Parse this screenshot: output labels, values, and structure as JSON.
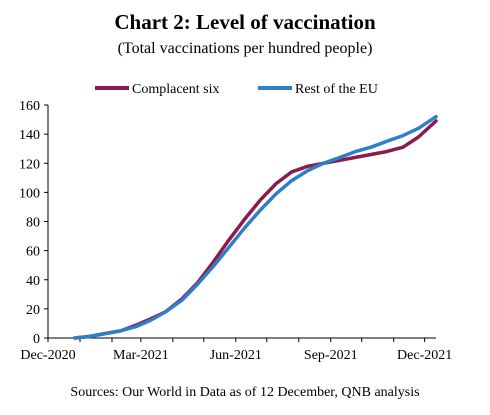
{
  "chart_data": {
    "type": "line",
    "title": "Chart 2: Level of vaccination",
    "subtitle": "(Total vaccinations per hundred people)",
    "source": "Sources: Our World in Data as of 12 December, QNB analysis",
    "xlabel": "",
    "ylabel": "",
    "ylim": [
      0,
      160
    ],
    "yticks": [
      0,
      20,
      40,
      60,
      80,
      100,
      120,
      140,
      160
    ],
    "xlim": [
      "2020-12-01",
      "2021-12-12"
    ],
    "xticks": [
      {
        "date": "2020-12-01",
        "label": "Dec-2020"
      },
      {
        "date": "2021-03-01",
        "label": "Mar-2021"
      },
      {
        "date": "2021-06-01",
        "label": "Jun-2021"
      },
      {
        "date": "2021-09-01",
        "label": "Sep-2021"
      },
      {
        "date": "2021-12-01",
        "label": "Dec-2021"
      }
    ],
    "grid": false,
    "legend_position": "top",
    "series": [
      {
        "name": "Complacent six",
        "color": "#8B1A4E",
        "points": [
          [
            "2020-12-27",
            0
          ],
          [
            "2021-01-10",
            1
          ],
          [
            "2021-01-25",
            3
          ],
          [
            "2021-02-10",
            5
          ],
          [
            "2021-02-25",
            9
          ],
          [
            "2021-03-10",
            13
          ],
          [
            "2021-03-25",
            18
          ],
          [
            "2021-04-10",
            27
          ],
          [
            "2021-04-25",
            38
          ],
          [
            "2021-05-10",
            52
          ],
          [
            "2021-05-25",
            67
          ],
          [
            "2021-06-10",
            82
          ],
          [
            "2021-06-25",
            95
          ],
          [
            "2021-07-10",
            106
          ],
          [
            "2021-07-25",
            114
          ],
          [
            "2021-08-10",
            118
          ],
          [
            "2021-08-25",
            120
          ],
          [
            "2021-09-10",
            122
          ],
          [
            "2021-09-25",
            124
          ],
          [
            "2021-10-10",
            126
          ],
          [
            "2021-10-25",
            128
          ],
          [
            "2021-11-10",
            131
          ],
          [
            "2021-11-25",
            138
          ],
          [
            "2021-12-12",
            149
          ]
        ]
      },
      {
        "name": "Rest of the EU",
        "color": "#2F7FC8",
        "points": [
          [
            "2020-12-27",
            0
          ],
          [
            "2021-01-10",
            1
          ],
          [
            "2021-01-25",
            3
          ],
          [
            "2021-02-10",
            5
          ],
          [
            "2021-02-25",
            8
          ],
          [
            "2021-03-10",
            12
          ],
          [
            "2021-03-25",
            18
          ],
          [
            "2021-04-10",
            26
          ],
          [
            "2021-04-25",
            37
          ],
          [
            "2021-05-10",
            49
          ],
          [
            "2021-05-25",
            62
          ],
          [
            "2021-06-10",
            76
          ],
          [
            "2021-06-25",
            88
          ],
          [
            "2021-07-10",
            99
          ],
          [
            "2021-07-25",
            108
          ],
          [
            "2021-08-10",
            115
          ],
          [
            "2021-08-25",
            120
          ],
          [
            "2021-09-10",
            124
          ],
          [
            "2021-09-25",
            128
          ],
          [
            "2021-10-10",
            131
          ],
          [
            "2021-10-25",
            135
          ],
          [
            "2021-11-10",
            139
          ],
          [
            "2021-11-25",
            144
          ],
          [
            "2021-12-12",
            152
          ]
        ]
      }
    ]
  }
}
